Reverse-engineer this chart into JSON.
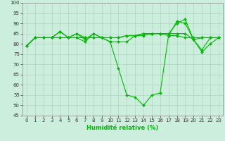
{
  "xlabel": "Humidité relative (%)",
  "xlim": [
    -0.5,
    23.5
  ],
  "ylim": [
    45,
    100
  ],
  "yticks": [
    45,
    50,
    55,
    60,
    65,
    70,
    75,
    80,
    85,
    90,
    95,
    100
  ],
  "xticks": [
    0,
    1,
    2,
    3,
    4,
    5,
    6,
    7,
    8,
    9,
    10,
    11,
    12,
    13,
    14,
    15,
    16,
    17,
    18,
    19,
    20,
    21,
    22,
    23
  ],
  "bg_color": "#cceedd",
  "grid_color_major": "#aaccbb",
  "grid_color_minor": "#bbddcc",
  "line_color": "#00bb00",
  "lines": [
    [
      79,
      83,
      83,
      83,
      86,
      83,
      85,
      82,
      85,
      83,
      81,
      68,
      55,
      54,
      50,
      55,
      56,
      84,
      91,
      90,
      82,
      76,
      80,
      83
    ],
    [
      79,
      83,
      83,
      83,
      83,
      83,
      83,
      83,
      83,
      83,
      81,
      81,
      81,
      84,
      85,
      85,
      85,
      84,
      84,
      83,
      83,
      83,
      83,
      83
    ],
    [
      79,
      83,
      83,
      83,
      86,
      83,
      83,
      81,
      85,
      83,
      83,
      83,
      84,
      84,
      85,
      85,
      85,
      85,
      90,
      92,
      82,
      77,
      83,
      83
    ],
    [
      79,
      83,
      83,
      83,
      83,
      83,
      85,
      83,
      83,
      83,
      83,
      83,
      84,
      84,
      84,
      85,
      85,
      85,
      85,
      85,
      82,
      83,
      83,
      83
    ]
  ]
}
